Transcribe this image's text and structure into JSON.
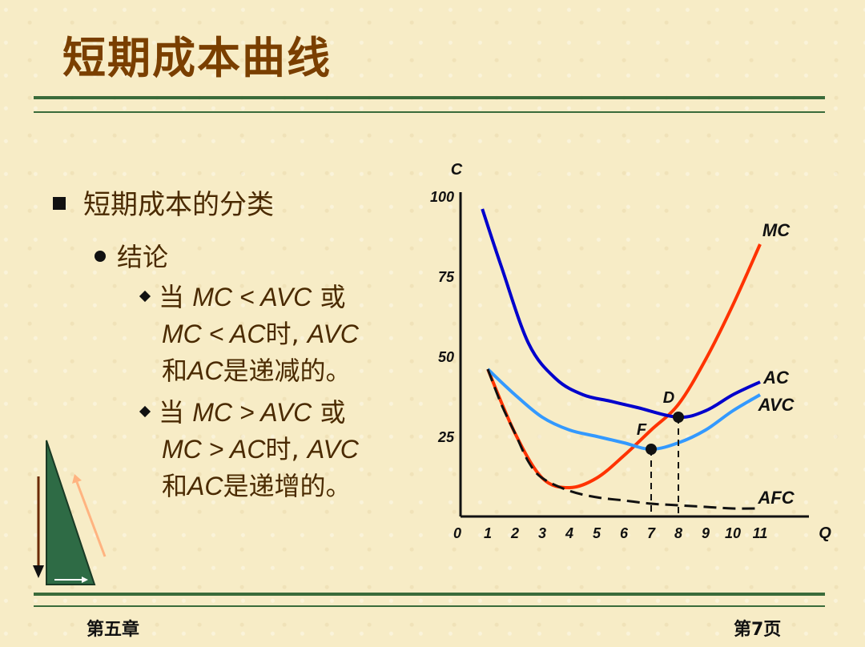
{
  "slide": {
    "title": "短期成本曲线",
    "bullet1": "短期成本的分类",
    "bullet2": "结论",
    "point1": {
      "l1a": "当",
      "l1b": "MC  <  AVC",
      "l1c": "或",
      "l2a": "MC < AC",
      "l2b": "时, ",
      "l2c": "AVC",
      "l3a": "和",
      "l3b": "AC",
      "l3c": "是递减的。"
    },
    "point2": {
      "l1a": "当",
      "l1b": "MC  >  AVC",
      "l1c": "或",
      "l2a": "MC > AC",
      "l2b": "时, ",
      "l2c": "AVC",
      "l3a": "和",
      "l3b": "AC",
      "l3c": "是递增的。"
    }
  },
  "footer": {
    "left": "第五章",
    "right": "第7页"
  },
  "colors": {
    "title": "#7a3f00",
    "rule": "#3a6b3a",
    "mc": "#ff3300",
    "ac": "#0000cc",
    "avc": "#3399ff",
    "afc": "#111111"
  },
  "nav_icons": [
    "down-arrow-icon",
    "triangle-icon",
    "right-arrow-icon"
  ],
  "chart_data": {
    "type": "line",
    "ylabel": "C",
    "xlabel": "Q",
    "x_ticks": [
      "0",
      "1",
      "2",
      "3",
      "4",
      "5",
      "6",
      "7",
      "8",
      "9",
      "10",
      "11"
    ],
    "y_ticks": [
      "25",
      "50",
      "75",
      "100"
    ],
    "xlim": [
      0,
      12
    ],
    "ylim": [
      0,
      105
    ],
    "series": [
      {
        "name": "MC",
        "points": [
          [
            1,
            46
          ],
          [
            2,
            26
          ],
          [
            3,
            12
          ],
          [
            4,
            9
          ],
          [
            5,
            12
          ],
          [
            6,
            19
          ],
          [
            7,
            27
          ],
          [
            8,
            35
          ],
          [
            9,
            49
          ],
          [
            10,
            66
          ],
          [
            11,
            85
          ]
        ]
      },
      {
        "name": "AC",
        "points": [
          [
            0.8,
            96
          ],
          [
            1.5,
            78
          ],
          [
            2.5,
            54
          ],
          [
            3.5,
            43
          ],
          [
            4.5,
            38
          ],
          [
            5.5,
            36
          ],
          [
            6.5,
            34
          ],
          [
            8,
            31
          ],
          [
            9,
            33
          ],
          [
            10,
            38
          ],
          [
            11,
            42
          ]
        ]
      },
      {
        "name": "AVC",
        "points": [
          [
            1,
            46
          ],
          [
            2,
            38
          ],
          [
            3,
            31
          ],
          [
            4,
            27
          ],
          [
            5,
            25
          ],
          [
            6,
            23
          ],
          [
            7,
            21
          ],
          [
            8,
            23
          ],
          [
            9,
            27
          ],
          [
            10,
            33
          ],
          [
            11,
            38
          ]
        ]
      },
      {
        "name": "AFC",
        "points": [
          [
            1,
            46
          ],
          [
            1.5,
            35
          ],
          [
            2,
            26
          ],
          [
            2.5,
            17
          ],
          [
            3,
            12
          ],
          [
            4,
            8
          ],
          [
            5,
            6
          ],
          [
            6,
            5
          ],
          [
            7,
            4
          ],
          [
            8,
            3.5
          ],
          [
            9,
            3
          ],
          [
            10,
            2.5
          ],
          [
            11,
            2.5
          ]
        ]
      }
    ],
    "annotations": [
      {
        "label": "D",
        "x": 8,
        "y": 31
      },
      {
        "label": "F",
        "x": 7,
        "y": 21
      }
    ]
  }
}
